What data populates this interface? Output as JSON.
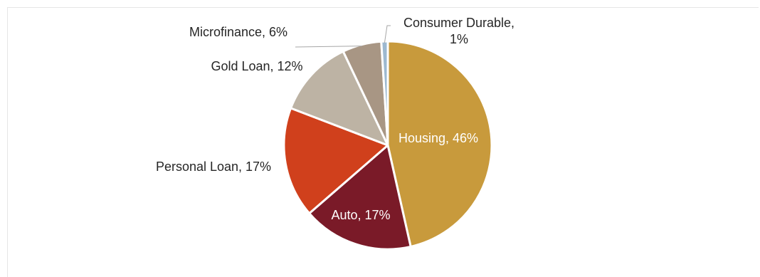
{
  "chart_data": {
    "type": "pie",
    "slices": [
      {
        "label": "Housing",
        "value": 46,
        "text": "Housing, 46%",
        "color": "#c89a3c"
      },
      {
        "label": "Auto",
        "value": 17,
        "text": "Auto, 17%",
        "color": "#7a1a28"
      },
      {
        "label": "Personal Loan",
        "value": 17,
        "text": "Personal Loan, 17%",
        "color": "#d0401c"
      },
      {
        "label": "Gold Loan",
        "value": 12,
        "text": "Gold Loan, 12%",
        "color": "#bdb3a4"
      },
      {
        "label": "Microfinance",
        "value": 6,
        "text": "Microfinance, 6%",
        "color": "#a89684"
      },
      {
        "label": "Consumer Durable",
        "value": 1,
        "text_lines": [
          "Consumer Durable,",
          "1%"
        ],
        "color": "#9db9d0"
      }
    ],
    "start_angle": "12 o'clock",
    "direction": "clockwise",
    "legend": "none"
  }
}
